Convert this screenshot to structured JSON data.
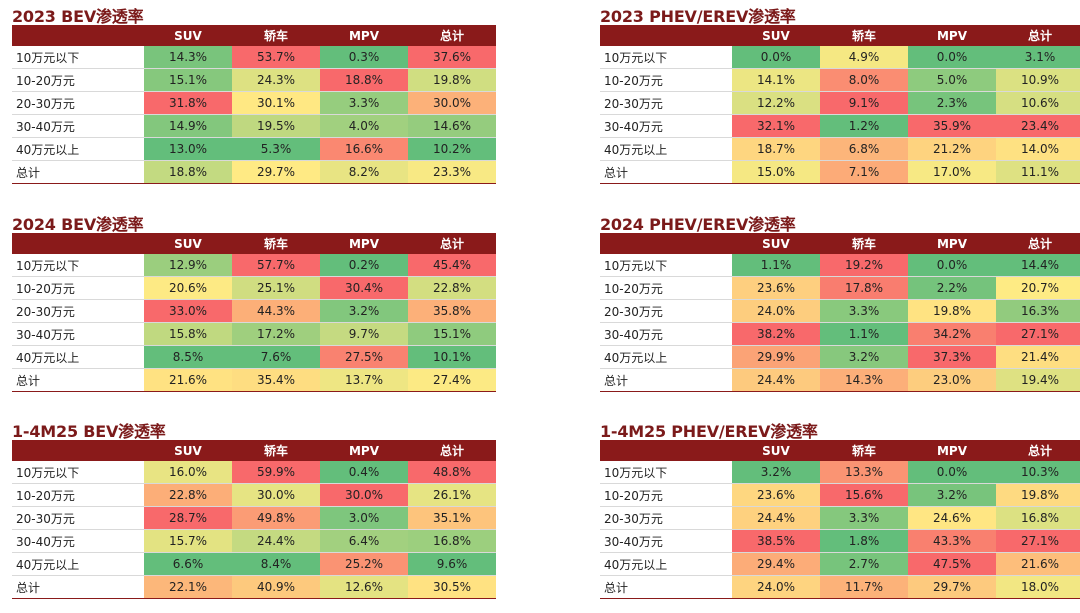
{
  "chart_data": [
    {
      "type": "heatmap",
      "title": "2023 BEV渗透率",
      "columns": [
        "SUV",
        "轿车",
        "MPV",
        "总计"
      ],
      "rows": [
        "10万元以下",
        "10-20万元",
        "20-30万元",
        "30-40万元",
        "40万元以上",
        "总计"
      ],
      "values": [
        [
          "14.3%",
          "53.7%",
          "0.3%",
          "37.6%"
        ],
        [
          "15.1%",
          "24.3%",
          "18.8%",
          "19.8%"
        ],
        [
          "31.8%",
          "30.1%",
          "3.3%",
          "30.0%"
        ],
        [
          "14.9%",
          "19.5%",
          "4.0%",
          "14.6%"
        ],
        [
          "13.0%",
          "5.3%",
          "16.6%",
          "10.2%"
        ],
        [
          "18.8%",
          "29.7%",
          "8.2%",
          "23.3%"
        ]
      ]
    },
    {
      "type": "heatmap",
      "title": "2023 PHEV/EREV渗透率",
      "columns": [
        "SUV",
        "轿车",
        "MPV",
        "总计"
      ],
      "rows": [
        "10万元以下",
        "10-20万元",
        "20-30万元",
        "30-40万元",
        "40万元以上",
        "总计"
      ],
      "values": [
        [
          "0.0%",
          "4.9%",
          "0.0%",
          "3.1%"
        ],
        [
          "14.1%",
          "8.0%",
          "5.0%",
          "10.9%"
        ],
        [
          "12.2%",
          "9.1%",
          "2.3%",
          "10.6%"
        ],
        [
          "32.1%",
          "1.2%",
          "35.9%",
          "23.4%"
        ],
        [
          "18.7%",
          "6.8%",
          "21.2%",
          "14.0%"
        ],
        [
          "15.0%",
          "7.1%",
          "17.0%",
          "11.1%"
        ]
      ]
    },
    {
      "type": "heatmap",
      "title": "2024 BEV渗透率",
      "columns": [
        "SUV",
        "轿车",
        "MPV",
        "总计"
      ],
      "rows": [
        "10万元以下",
        "10-20万元",
        "20-30万元",
        "30-40万元",
        "40万元以上",
        "总计"
      ],
      "values": [
        [
          "12.9%",
          "57.7%",
          "0.2%",
          "45.4%"
        ],
        [
          "20.6%",
          "25.1%",
          "30.4%",
          "22.8%"
        ],
        [
          "33.0%",
          "44.3%",
          "3.2%",
          "35.8%"
        ],
        [
          "15.8%",
          "17.2%",
          "9.7%",
          "15.1%"
        ],
        [
          "8.5%",
          "7.6%",
          "27.5%",
          "10.1%"
        ],
        [
          "21.6%",
          "35.4%",
          "13.7%",
          "27.4%"
        ]
      ]
    },
    {
      "type": "heatmap",
      "title": "2024 PHEV/EREV渗透率",
      "columns": [
        "SUV",
        "轿车",
        "MPV",
        "总计"
      ],
      "rows": [
        "10万元以下",
        "10-20万元",
        "20-30万元",
        "30-40万元",
        "40万元以上",
        "总计"
      ],
      "values": [
        [
          "1.1%",
          "19.2%",
          "0.0%",
          "14.4%"
        ],
        [
          "23.6%",
          "17.8%",
          "2.2%",
          "20.7%"
        ],
        [
          "24.0%",
          "3.3%",
          "19.8%",
          "16.3%"
        ],
        [
          "38.2%",
          "1.1%",
          "34.2%",
          "27.1%"
        ],
        [
          "29.9%",
          "3.2%",
          "37.3%",
          "21.4%"
        ],
        [
          "24.4%",
          "14.3%",
          "23.0%",
          "19.4%"
        ]
      ]
    },
    {
      "type": "heatmap",
      "title": "1-4M25 BEV渗透率",
      "columns": [
        "SUV",
        "轿车",
        "MPV",
        "总计"
      ],
      "rows": [
        "10万元以下",
        "10-20万元",
        "20-30万元",
        "30-40万元",
        "40万元以上",
        "总计"
      ],
      "values": [
        [
          "16.0%",
          "59.9%",
          "0.4%",
          "48.8%"
        ],
        [
          "22.8%",
          "30.0%",
          "30.0%",
          "26.1%"
        ],
        [
          "28.7%",
          "49.8%",
          "3.0%",
          "35.1%"
        ],
        [
          "15.7%",
          "24.4%",
          "6.4%",
          "16.8%"
        ],
        [
          "6.6%",
          "8.4%",
          "25.2%",
          "9.6%"
        ],
        [
          "22.1%",
          "40.9%",
          "12.6%",
          "30.5%"
        ]
      ]
    },
    {
      "type": "heatmap",
      "title": "1-4M25 PHEV/EREV渗透率",
      "columns": [
        "SUV",
        "轿车",
        "MPV",
        "总计"
      ],
      "rows": [
        "10万元以下",
        "10-20万元",
        "20-30万元",
        "30-40万元",
        "40万元以上",
        "总计"
      ],
      "values": [
        [
          "3.2%",
          "13.3%",
          "0.0%",
          "10.3%"
        ],
        [
          "23.6%",
          "15.6%",
          "3.2%",
          "19.8%"
        ],
        [
          "24.4%",
          "3.3%",
          "24.6%",
          "16.8%"
        ],
        [
          "38.5%",
          "1.8%",
          "43.3%",
          "27.1%"
        ],
        [
          "29.4%",
          "2.7%",
          "47.5%",
          "21.6%"
        ],
        [
          "24.0%",
          "11.7%",
          "29.7%",
          "18.0%"
        ]
      ]
    }
  ],
  "colors": {
    "header_bg": "#8a1a1a",
    "title_text": "#7b1a1a",
    "scale_low": "#63be7b",
    "scale_mid": "#ffeb84",
    "scale_high": "#f8696b"
  }
}
